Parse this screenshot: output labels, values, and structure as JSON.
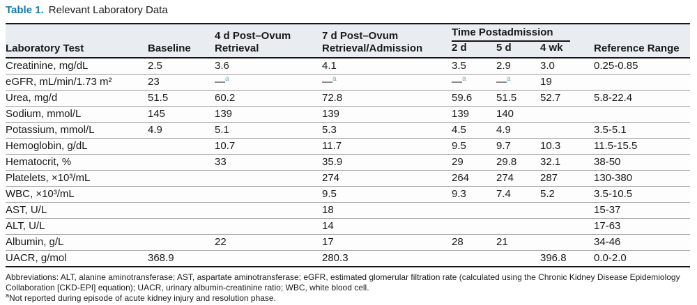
{
  "caption": {
    "label": "Table 1.",
    "title": "Relevant Laboratory Data"
  },
  "table": {
    "headers": {
      "lab_test": "Laboratory Test",
      "baseline": "Baseline",
      "post_4d": "4 d Post–Ovum Retrieval",
      "post_7d": "7 d Post–Ovum Retrieval/Admission",
      "time_postadmission": "Time Postadmission",
      "d2": "2 d",
      "d5": "5 d",
      "wk4": "4 wk",
      "reference_range": "Reference Range"
    },
    "rows": [
      {
        "test": "Creatinine, mg/dL",
        "values": [
          "2.5",
          "3.6",
          "4.1",
          "3.5",
          "2.9",
          "3.0",
          "0.25-0.85"
        ]
      },
      {
        "test": "eGFR, mL/min/1.73 m²",
        "values": [
          "23",
          "—ᵃ",
          "—ᵃ",
          "—ᵃ",
          "—ᵃ",
          "19",
          ""
        ]
      },
      {
        "test": "Urea, mg/d",
        "values": [
          "51.5",
          "60.2",
          "72.8",
          "59.6",
          "51.5",
          "52.7",
          "5.8-22.4"
        ]
      },
      {
        "test": "Sodium, mmol/L",
        "values": [
          "145",
          "139",
          "139",
          "139",
          "140",
          "",
          ""
        ]
      },
      {
        "test": "Potassium, mmol/L",
        "values": [
          "4.9",
          "5.1",
          "5.3",
          "4.5",
          "4.9",
          "",
          "3.5-5.1"
        ]
      },
      {
        "test": "Hemoglobin, g/dL",
        "values": [
          "",
          "10.7",
          "11.7",
          "9.5",
          "9.7",
          "10.3",
          "11.5-15.5"
        ]
      },
      {
        "test": "Hematocrit, %",
        "values": [
          "",
          "33",
          "35.9",
          "29",
          "29.8",
          "32.1",
          "38-50"
        ]
      },
      {
        "test": "Platelets, ×10³/mL",
        "values": [
          "",
          "",
          "274",
          "264",
          "274",
          "287",
          "130-380"
        ]
      },
      {
        "test": "WBC, ×10³/mL",
        "values": [
          "",
          "",
          "9.5",
          "9.3",
          "7.4",
          "5.2",
          "3.5-10.5"
        ]
      },
      {
        "test": "AST, U/L",
        "values": [
          "",
          "",
          "18",
          "",
          "",
          "",
          "15-37"
        ]
      },
      {
        "test": "ALT, U/L",
        "values": [
          "",
          "",
          "14",
          "",
          "",
          "",
          "17-63"
        ]
      },
      {
        "test": "Albumin, g/L",
        "values": [
          "",
          "22",
          "17",
          "28",
          "21",
          "",
          "34-46"
        ]
      },
      {
        "test": "UACR, g/mol",
        "values": [
          "368.9",
          "",
          "280.3",
          "",
          "",
          "396.8",
          "0.0-2.0"
        ]
      }
    ]
  },
  "footnotes": {
    "abbreviations": "Abbreviations: ALT, alanine aminotransferase; AST, aspartate aminotransferase; eGFR, estimated glomerular filtration rate (calculated using the Chronic Kidney Disease Epidemiology Collaboration [CKD-EPI] equation); UACR, urinary albumin-creatinine ratio; WBC, white blood cell.",
    "note_a_marker": "a",
    "note_a_text": "Not reported during episode of acute kidney injury and resolution phase."
  },
  "colors": {
    "title_accent": "#1477a8",
    "footnote_ref_accent": "#74aac8",
    "header_band": "#e9edf2",
    "rule": "#161616"
  }
}
